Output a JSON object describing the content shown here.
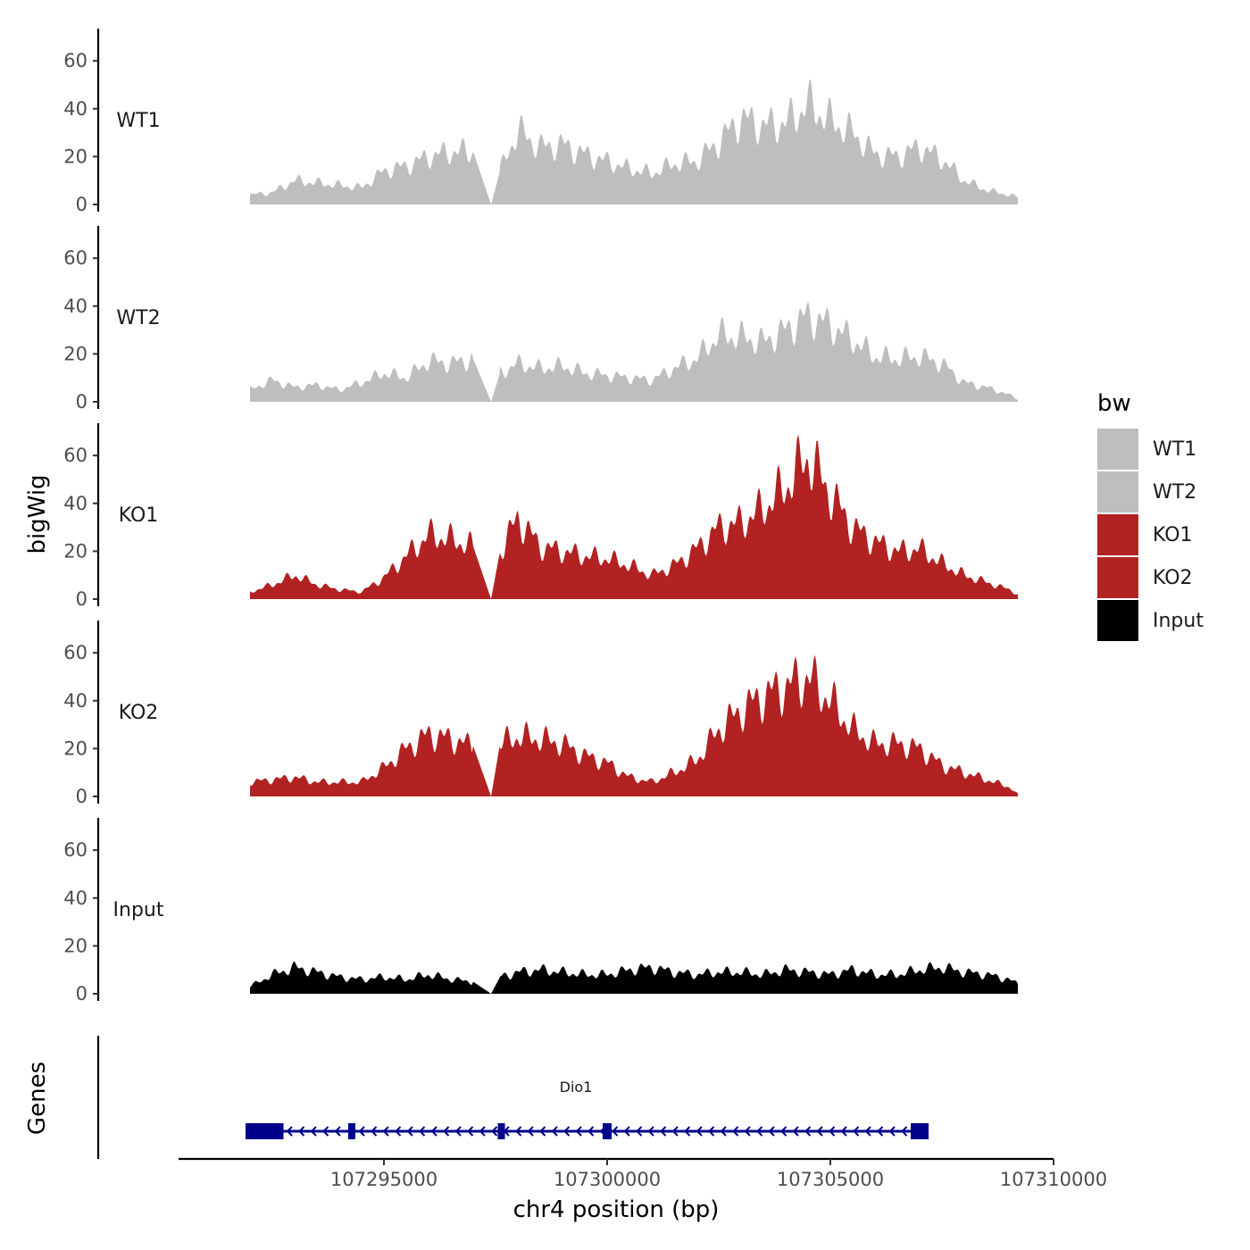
{
  "chart_data": {
    "type": "area",
    "ylabel": "bigWig",
    "xlabel": "chr4 position (bp)",
    "genes_track_label": "Genes",
    "xlim": [
      107290400,
      107310000
    ],
    "x_ticks": [
      107295000,
      107300000,
      107305000,
      107310000
    ],
    "x_tick_labels": [
      "107295000",
      "107300000",
      "107305000",
      "107310000"
    ],
    "ylim": [
      0,
      72
    ],
    "y_ticks": [
      0,
      20,
      40,
      60
    ],
    "y_tick_labels": [
      "0",
      "20",
      "40",
      "60"
    ],
    "legend": {
      "title": "bw",
      "position": "right",
      "entries": [
        {
          "name": "WT1",
          "color": "#BEBEBE"
        },
        {
          "name": "WT2",
          "color": "#BEBEBE"
        },
        {
          "name": "KO1",
          "color": "#B22222"
        },
        {
          "name": "KO2",
          "color": "#B22222"
        },
        {
          "name": "Input",
          "color": "#000000"
        }
      ]
    },
    "x": [
      107292000,
      107292500,
      107293000,
      107293500,
      107294000,
      107294500,
      107295000,
      107295500,
      107296000,
      107296500,
      107297000,
      107297400,
      107297600,
      107298000,
      107298500,
      107299000,
      107299500,
      107300000,
      107300500,
      107301000,
      107301500,
      107302000,
      107302500,
      107303000,
      107303500,
      107304000,
      107304500,
      107305000,
      107305500,
      107306000,
      107306500,
      107307000,
      107307500,
      107308000,
      107308500,
      107309000,
      107309200
    ],
    "series": [
      {
        "name": "WT1",
        "color": "#BEBEBE",
        "values": [
          4,
          5,
          10,
          9,
          8,
          7,
          14,
          16,
          20,
          22,
          22,
          0,
          14,
          31,
          24,
          25,
          21,
          18,
          15,
          13,
          17,
          18,
          26,
          36,
          33,
          34,
          42,
          35,
          30,
          21,
          20,
          24,
          19,
          10,
          6,
          4,
          3
        ]
      },
      {
        "name": "WT2",
        "color": "#BEBEBE",
        "values": [
          5,
          9,
          6,
          7,
          5,
          8,
          12,
          10,
          17,
          16,
          18,
          0,
          12,
          16,
          14,
          15,
          12,
          11,
          10,
          9,
          14,
          18,
          28,
          27,
          25,
          30,
          36,
          32,
          26,
          19,
          18,
          19,
          16,
          8,
          6,
          3,
          1
        ]
      },
      {
        "name": "KO1",
        "color": "#B22222",
        "values": [
          3,
          6,
          10,
          6,
          4,
          3,
          9,
          18,
          27,
          25,
          22,
          0,
          20,
          34,
          22,
          20,
          18,
          17,
          14,
          10,
          14,
          21,
          30,
          32,
          38,
          47,
          60,
          44,
          30,
          24,
          20,
          21,
          15,
          10,
          7,
          4,
          2
        ]
      },
      {
        "name": "KO2",
        "color": "#B22222",
        "values": [
          6,
          7,
          8,
          6,
          6,
          6,
          12,
          20,
          26,
          24,
          21,
          0,
          22,
          25,
          24,
          22,
          17,
          14,
          8,
          6,
          10,
          15,
          28,
          36,
          42,
          46,
          50,
          40,
          28,
          22,
          22,
          20,
          13,
          10,
          7,
          4,
          1
        ]
      },
      {
        "name": "Input",
        "color": "#000000",
        "values": [
          3,
          8,
          11,
          9,
          7,
          6,
          7,
          6,
          8,
          6,
          5,
          0,
          7,
          9,
          10,
          9,
          8,
          8,
          10,
          11,
          9,
          8,
          9,
          9,
          8,
          10,
          9,
          8,
          10,
          8,
          8,
          10,
          11,
          9,
          8,
          6,
          4
        ]
      }
    ],
    "genes": [
      {
        "name": "Dio1",
        "label_x": 107299300,
        "strand": "-",
        "start": 107291900,
        "end": 107307200,
        "exons": [
          [
            107291900,
            107292750
          ],
          [
            107294200,
            107294350
          ],
          [
            107297550,
            107297650
          ],
          [
            107299900,
            107300100
          ],
          [
            107306800,
            107307200
          ]
        ],
        "color": "#00008B"
      }
    ]
  }
}
